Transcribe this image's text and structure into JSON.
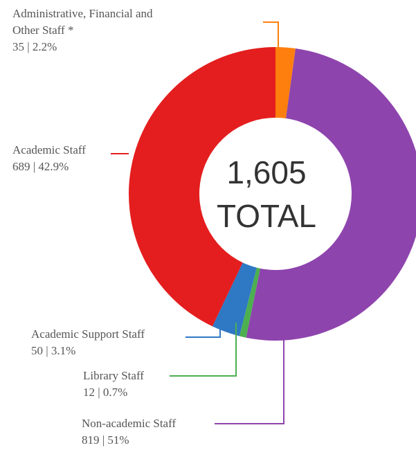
{
  "chart_data": {
    "type": "pie",
    "variant": "donut",
    "center_text": [
      "1,605",
      "TOTAL"
    ],
    "total": 1605,
    "slices": [
      {
        "label_lines": [
          "Administrative, Financial and",
          "Other Staff *"
        ],
        "value": 35,
        "value_text": "35 | 2.2%",
        "percent": 2.2,
        "color": "#ff7f0e"
      },
      {
        "label_lines": [
          "Non-academic Staff"
        ],
        "value": 819,
        "value_text": "819 | 51%",
        "percent": 51,
        "color": "#8e44ad"
      },
      {
        "label_lines": [
          "Library Staff"
        ],
        "value": 12,
        "value_text": "12 | 0.7%",
        "percent": 0.7,
        "color": "#4caf50"
      },
      {
        "label_lines": [
          "Academic Support Staff"
        ],
        "value": 50,
        "value_text": "50 | 3.1%",
        "percent": 3.1,
        "color": "#2f78c4"
      },
      {
        "label_lines": [
          "Academic Staff"
        ],
        "value": 689,
        "value_text": "689 | 42.9%",
        "percent": 42.9,
        "color": "#e41e1e"
      }
    ],
    "legend": "labels beside slices with leader lines"
  }
}
